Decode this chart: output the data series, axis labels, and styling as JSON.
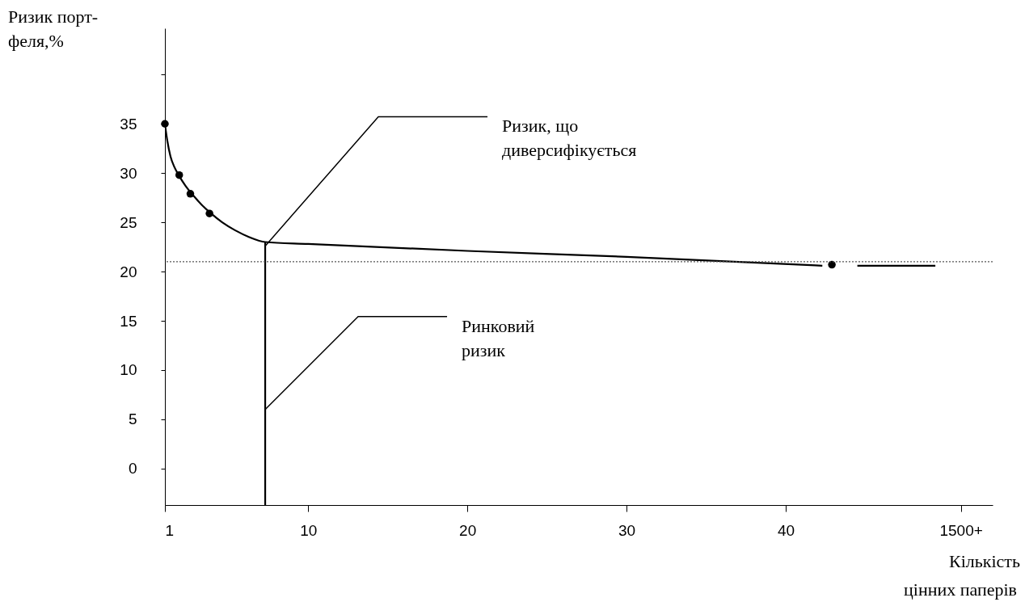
{
  "chart_data": {
    "type": "line",
    "xlabel": "Кількість\nцінних паперів",
    "ylabel": "Ризик порт-\nфеля,%",
    "xlim": [
      1,
      53
    ],
    "xticks": [
      1,
      10,
      20,
      30,
      40,
      {
        "value": 51,
        "label": "1500+"
      }
    ],
    "ylim": [
      -3.7,
      44.7
    ],
    "yticks": [
      0,
      5,
      10,
      15,
      20,
      25,
      30,
      35,
      {
        "value": 40,
        "label": null
      }
    ],
    "grid": false,
    "series": [
      {
        "color": "#000000",
        "marker": "none",
        "x": [
          1,
          1.15,
          1.35,
          1.6,
          1.9,
          2.3,
          2.8,
          3.3,
          3.9,
          4.6,
          5.4,
          6.3,
          7.3,
          10,
          20,
          30,
          42.3
        ],
        "values": [
          35,
          33.3,
          31.7,
          30.6,
          29.7,
          28.7,
          27.7,
          26.8,
          25.9,
          25,
          24.2,
          23.5,
          23,
          22.8,
          22.1,
          21.5,
          20.6
        ]
      },
      {
        "type": "scatter",
        "color": "#000000",
        "marker": "circle",
        "x": [
          1,
          1.9,
          2.6,
          3.8,
          42.9
        ],
        "values": [
          35,
          29.8,
          27.9,
          25.9,
          20.7
        ]
      },
      {
        "color": "#000000",
        "marker": "none",
        "x": [
          44.5,
          49.4
        ],
        "values": [
          20.6,
          20.6
        ]
      },
      {
        "color": "#000000",
        "marker": "none",
        "x": [
          7.3,
          7.3
        ],
        "values": [
          -3.7,
          23
        ]
      }
    ],
    "ref_lines": [
      {
        "axis": "y",
        "value": 21,
        "line_style": "dotted",
        "color": "#555555"
      }
    ],
    "annotations": [
      {
        "text": "Ризик, що\nдиверсифікується",
        "x": 7.3,
        "y": 22.6
      },
      {
        "text": "Ринковий\nризик",
        "x": 7.3,
        "y": 6
      }
    ]
  }
}
